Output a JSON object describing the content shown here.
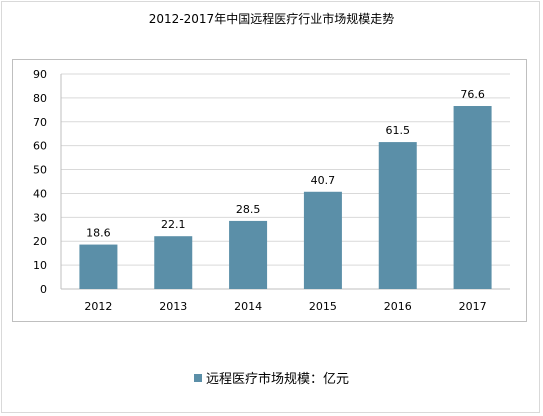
{
  "chart_data": {
    "type": "bar",
    "title": "2012-2017年中国远程医疗行业市场规模走势",
    "categories": [
      "2012",
      "2013",
      "2014",
      "2015",
      "2016",
      "2017"
    ],
    "series": [
      {
        "name": "远程医疗市场规模：亿元",
        "values": [
          18.6,
          22.1,
          28.5,
          40.7,
          61.5,
          76.6
        ]
      }
    ],
    "value_labels": [
      "18.6",
      "22.1",
      "28.5",
      "40.7",
      "61.5",
      "76.6"
    ],
    "ylim": [
      0,
      90
    ],
    "yticks": [
      0,
      10,
      20,
      30,
      40,
      50,
      60,
      70,
      80,
      90
    ],
    "grid": true,
    "legend_position": "bottom",
    "colors": {
      "bar": "#5b8fa8",
      "grid": "#d9d9d9",
      "axis": "#bfbfbf"
    }
  }
}
